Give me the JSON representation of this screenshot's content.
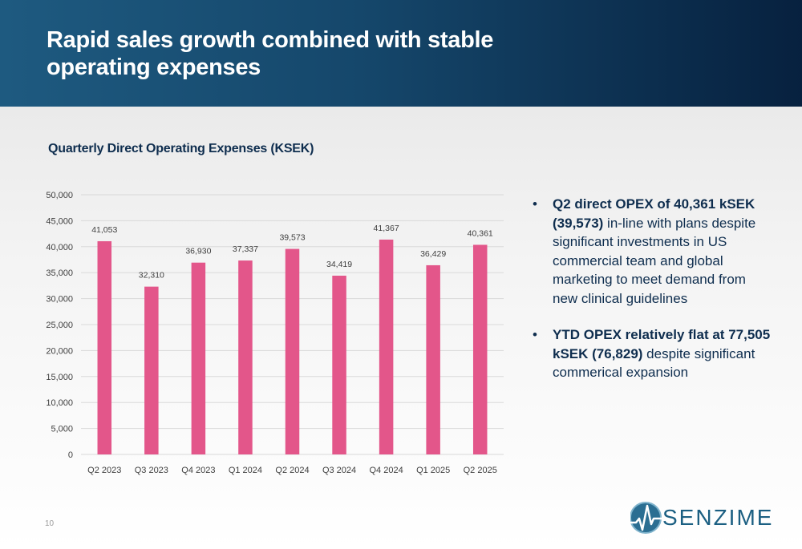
{
  "page": {
    "title": "Rapid sales growth combined with stable operating expenses",
    "page_number": "10",
    "logo_text": "SENZIME"
  },
  "bullets": [
    {
      "bold": "Q2 direct OPEX of 40,361 kSEK (39,573)",
      "text": " in-line with plans despite significant investments in US commercial team and global marketing to meet demand from new clinical guidelines"
    },
    {
      "bold": "YTD OPEX relatively flat at 77,505 kSEK (76,829)",
      "text": " despite significant commerical expansion"
    }
  ],
  "chart_data": {
    "type": "bar",
    "title": "Quarterly Direct Operating Expenses (KSEK)",
    "categories": [
      "Q2 2023",
      "Q3 2023",
      "Q4 2023",
      "Q1 2024",
      "Q2 2024",
      "Q3 2024",
      "Q4 2024",
      "Q1 2025",
      "Q2 2025"
    ],
    "values": [
      41053,
      32310,
      36930,
      37337,
      39573,
      34419,
      41367,
      36429,
      40361
    ],
    "value_labels": [
      "41,053",
      "32,310",
      "36,930",
      "37,337",
      "39,573",
      "34,419",
      "41,367",
      "36,429",
      "40,361"
    ],
    "ylim": [
      0,
      50000
    ],
    "yticks": [
      0,
      5000,
      10000,
      15000,
      20000,
      25000,
      30000,
      35000,
      40000,
      45000,
      50000
    ],
    "ytick_labels": [
      "0",
      "5,000",
      "10,000",
      "15,000",
      "20,000",
      "25,000",
      "30,000",
      "35,000",
      "40,000",
      "45,000",
      "50,000"
    ],
    "xlabel": "",
    "ylabel": "",
    "grid": true,
    "legend": "none",
    "bar_color": "#e3568a",
    "grid_color": "#d9d9d9"
  }
}
